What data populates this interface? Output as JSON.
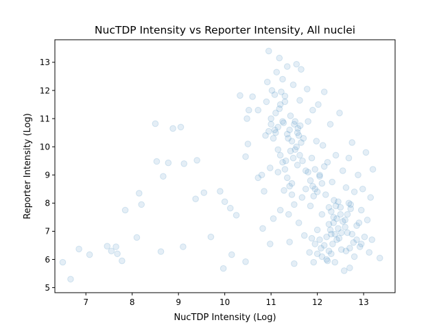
{
  "chart_data": {
    "type": "scatter",
    "title": "NucTDP Intensity vs Reporter Intensity, All nuclei",
    "xlabel": "NucTDP Intensity (Log)",
    "ylabel": "Reporter Intensity (Log)",
    "xlim": [
      6.33,
      13.68
    ],
    "ylim": [
      4.82,
      13.8
    ],
    "xticks": [
      "7",
      "8",
      "9",
      "10",
      "11",
      "12",
      "13"
    ],
    "yticks": [
      "5",
      "6",
      "7",
      "8",
      "9",
      "10",
      "11",
      "12",
      "13"
    ],
    "grid": false,
    "legend": "none",
    "marker_color": "#1f77b4",
    "marker_alpha": 0.12,
    "series": [
      {
        "points": [
          [
            6.5,
            5.9
          ],
          [
            6.67,
            5.3
          ],
          [
            6.85,
            6.37
          ],
          [
            7.08,
            6.17
          ],
          [
            7.46,
            6.47
          ],
          [
            7.55,
            6.3
          ],
          [
            7.65,
            6.45
          ],
          [
            7.68,
            6.2
          ],
          [
            7.78,
            5.95
          ],
          [
            7.85,
            7.75
          ],
          [
            8.1,
            6.78
          ],
          [
            8.15,
            8.35
          ],
          [
            8.2,
            7.95
          ],
          [
            8.5,
            10.82
          ],
          [
            8.53,
            9.48
          ],
          [
            8.62,
            6.28
          ],
          [
            8.67,
            8.95
          ],
          [
            8.78,
            9.43
          ],
          [
            8.88,
            10.65
          ],
          [
            9.05,
            10.7
          ],
          [
            9.1,
            6.45
          ],
          [
            9.12,
            9.4
          ],
          [
            9.37,
            8.15
          ],
          [
            9.4,
            9.52
          ],
          [
            9.55,
            8.37
          ],
          [
            9.7,
            6.8
          ],
          [
            9.9,
            8.42
          ],
          [
            9.97,
            5.68
          ],
          [
            10.0,
            8.05
          ],
          [
            10.12,
            7.82
          ],
          [
            10.15,
            6.17
          ],
          [
            10.25,
            7.57
          ],
          [
            10.33,
            11.82
          ],
          [
            10.45,
            5.92
          ],
          [
            10.45,
            9.65
          ],
          [
            10.48,
            11.0
          ],
          [
            10.5,
            10.1
          ],
          [
            10.52,
            11.3
          ],
          [
            10.6,
            11.78
          ],
          [
            10.72,
            11.3
          ],
          [
            10.72,
            8.9
          ],
          [
            10.8,
            9.0
          ],
          [
            10.82,
            7.1
          ],
          [
            10.85,
            8.42
          ],
          [
            10.88,
            10.4
          ],
          [
            10.9,
            11.6
          ],
          [
            10.92,
            12.3
          ],
          [
            10.95,
            13.4
          ],
          [
            10.98,
            6.55
          ],
          [
            10.98,
            9.25
          ],
          [
            11.0,
            10.8
          ],
          [
            11.02,
            12.0
          ],
          [
            11.05,
            7.45
          ],
          [
            11.08,
            11.85
          ],
          [
            11.1,
            10.5
          ],
          [
            11.12,
            12.65
          ],
          [
            11.15,
            9.9
          ],
          [
            11.18,
            13.15
          ],
          [
            11.2,
            7.75
          ],
          [
            11.22,
            11.95
          ],
          [
            11.25,
            12.4
          ],
          [
            11.27,
            10.85
          ],
          [
            11.3,
            11.6
          ],
          [
            11.32,
            9.5
          ],
          [
            11.35,
            12.85
          ],
          [
            11.37,
            10.3
          ],
          [
            11.4,
            6.62
          ],
          [
            11.42,
            11.1
          ],
          [
            11.45,
            8.7
          ],
          [
            11.48,
            12.2
          ],
          [
            11.5,
            5.85
          ],
          [
            11.52,
            9.9
          ],
          [
            11.55,
            12.93
          ],
          [
            11.57,
            10.5
          ],
          [
            11.6,
            7.3
          ],
          [
            11.62,
            11.65
          ],
          [
            11.65,
            12.75
          ],
          [
            11.67,
            8.2
          ],
          [
            11.7,
            10.3
          ],
          [
            11.72,
            6.85
          ],
          [
            11.75,
            9.15
          ],
          [
            11.78,
            12.05
          ],
          [
            11.8,
            10.9
          ],
          [
            11.83,
            6.25
          ],
          [
            11.85,
            7.9
          ],
          [
            11.88,
            9.6
          ],
          [
            11.9,
            11.3
          ],
          [
            11.92,
            5.9
          ],
          [
            11.95,
            8.5
          ],
          [
            11.98,
            10.2
          ],
          [
            12.0,
            7.05
          ],
          [
            12.02,
            11.5
          ],
          [
            12.05,
            9.0
          ],
          [
            12.08,
            6.4
          ],
          [
            12.1,
            7.6
          ],
          [
            12.12,
            10.05
          ],
          [
            12.15,
            11.95
          ],
          [
            12.18,
            8.3
          ],
          [
            12.2,
            6.8
          ],
          [
            12.22,
            9.45
          ],
          [
            12.25,
            7.25
          ],
          [
            12.28,
            10.8
          ],
          [
            12.3,
            6.2
          ],
          [
            12.32,
            8.75
          ],
          [
            12.35,
            7.5
          ],
          [
            12.38,
            5.9
          ],
          [
            12.4,
            9.7
          ],
          [
            12.42,
            6.7
          ],
          [
            12.45,
            8.05
          ],
          [
            12.48,
            11.2
          ],
          [
            12.5,
            7.85
          ],
          [
            12.52,
            6.35
          ],
          [
            12.55,
            9.15
          ],
          [
            12.58,
            5.6
          ],
          [
            12.6,
            7.4
          ],
          [
            12.62,
            8.55
          ],
          [
            12.65,
            6.95
          ],
          [
            12.68,
            9.6
          ],
          [
            12.7,
            5.7
          ],
          [
            12.72,
            7.95
          ],
          [
            12.75,
            10.15
          ],
          [
            12.78,
            6.6
          ],
          [
            12.8,
            8.4
          ],
          [
            12.85,
            7.2
          ],
          [
            12.88,
            9.0
          ],
          [
            12.92,
            6.45
          ],
          [
            12.95,
            7.75
          ],
          [
            12.98,
            8.5
          ],
          [
            13.02,
            6.8
          ],
          [
            13.05,
            9.8
          ],
          [
            13.08,
            7.4
          ],
          [
            13.12,
            6.25
          ],
          [
            13.15,
            8.2
          ],
          [
            13.18,
            6.7
          ],
          [
            13.2,
            9.2
          ],
          [
            13.35,
            6.05
          ],
          [
            11.4,
            10.6
          ],
          [
            11.45,
            10.2
          ],
          [
            11.5,
            10.8
          ],
          [
            11.55,
            10.0
          ],
          [
            11.6,
            10.4
          ],
          [
            11.62,
            9.7
          ],
          [
            11.48,
            9.6
          ],
          [
            11.52,
            10.9
          ],
          [
            11.58,
            10.65
          ],
          [
            11.65,
            10.15
          ],
          [
            11.42,
            9.85
          ],
          [
            11.68,
            9.5
          ],
          [
            11.35,
            10.45
          ],
          [
            11.57,
            9.35
          ],
          [
            11.63,
            10.75
          ],
          [
            12.3,
            7.7
          ],
          [
            12.35,
            7.3
          ],
          [
            12.4,
            7.9
          ],
          [
            12.45,
            7.1
          ],
          [
            12.5,
            7.6
          ],
          [
            12.38,
            6.9
          ],
          [
            12.42,
            7.45
          ],
          [
            12.28,
            7.05
          ],
          [
            12.47,
            6.75
          ],
          [
            12.55,
            7.35
          ],
          [
            12.33,
            6.55
          ],
          [
            12.6,
            7.15
          ],
          [
            12.25,
            7.85
          ],
          [
            12.52,
            6.95
          ],
          [
            12.36,
            8.1
          ],
          [
            11.85,
            8.8
          ],
          [
            11.9,
            8.6
          ],
          [
            11.95,
            9.2
          ],
          [
            12.0,
            8.4
          ],
          [
            12.05,
            8.95
          ],
          [
            11.8,
            9.1
          ],
          [
            12.1,
            8.7
          ],
          [
            11.75,
            8.5
          ],
          [
            12.15,
            9.3
          ],
          [
            11.92,
            8.25
          ],
          [
            11.1,
            11.2
          ],
          [
            11.15,
            10.7
          ],
          [
            11.2,
            11.5
          ],
          [
            11.05,
            10.3
          ],
          [
            11.25,
            10.9
          ],
          [
            11.0,
            11.0
          ],
          [
            11.3,
            11.8
          ],
          [
            11.08,
            10.6
          ],
          [
            11.18,
            11.35
          ],
          [
            10.95,
            10.55
          ],
          [
            12.7,
            6.4
          ],
          [
            12.75,
            6.9
          ],
          [
            12.8,
            6.1
          ],
          [
            12.65,
            7.6
          ],
          [
            12.85,
            6.7
          ],
          [
            12.9,
            7.3
          ],
          [
            12.62,
            6.3
          ],
          [
            12.72,
            7.8
          ],
          [
            12.95,
            6.55
          ],
          [
            12.68,
            8.0
          ],
          [
            11.3,
            9.2
          ],
          [
            11.35,
            8.9
          ],
          [
            11.25,
            9.45
          ],
          [
            11.4,
            8.6
          ],
          [
            11.2,
            9.7
          ],
          [
            11.45,
            8.3
          ],
          [
            11.15,
            9.1
          ],
          [
            11.5,
            7.95
          ],
          [
            11.28,
            8.45
          ],
          [
            11.38,
            7.6
          ],
          [
            12.1,
            6.1
          ],
          [
            12.15,
            6.5
          ],
          [
            12.2,
            6.0
          ],
          [
            12.05,
            6.7
          ],
          [
            12.25,
            6.3
          ],
          [
            11.95,
            6.55
          ],
          [
            12.0,
            6.2
          ],
          [
            12.3,
            6.9
          ],
          [
            11.88,
            6.75
          ],
          [
            12.22,
            5.95
          ]
        ]
      }
    ]
  }
}
